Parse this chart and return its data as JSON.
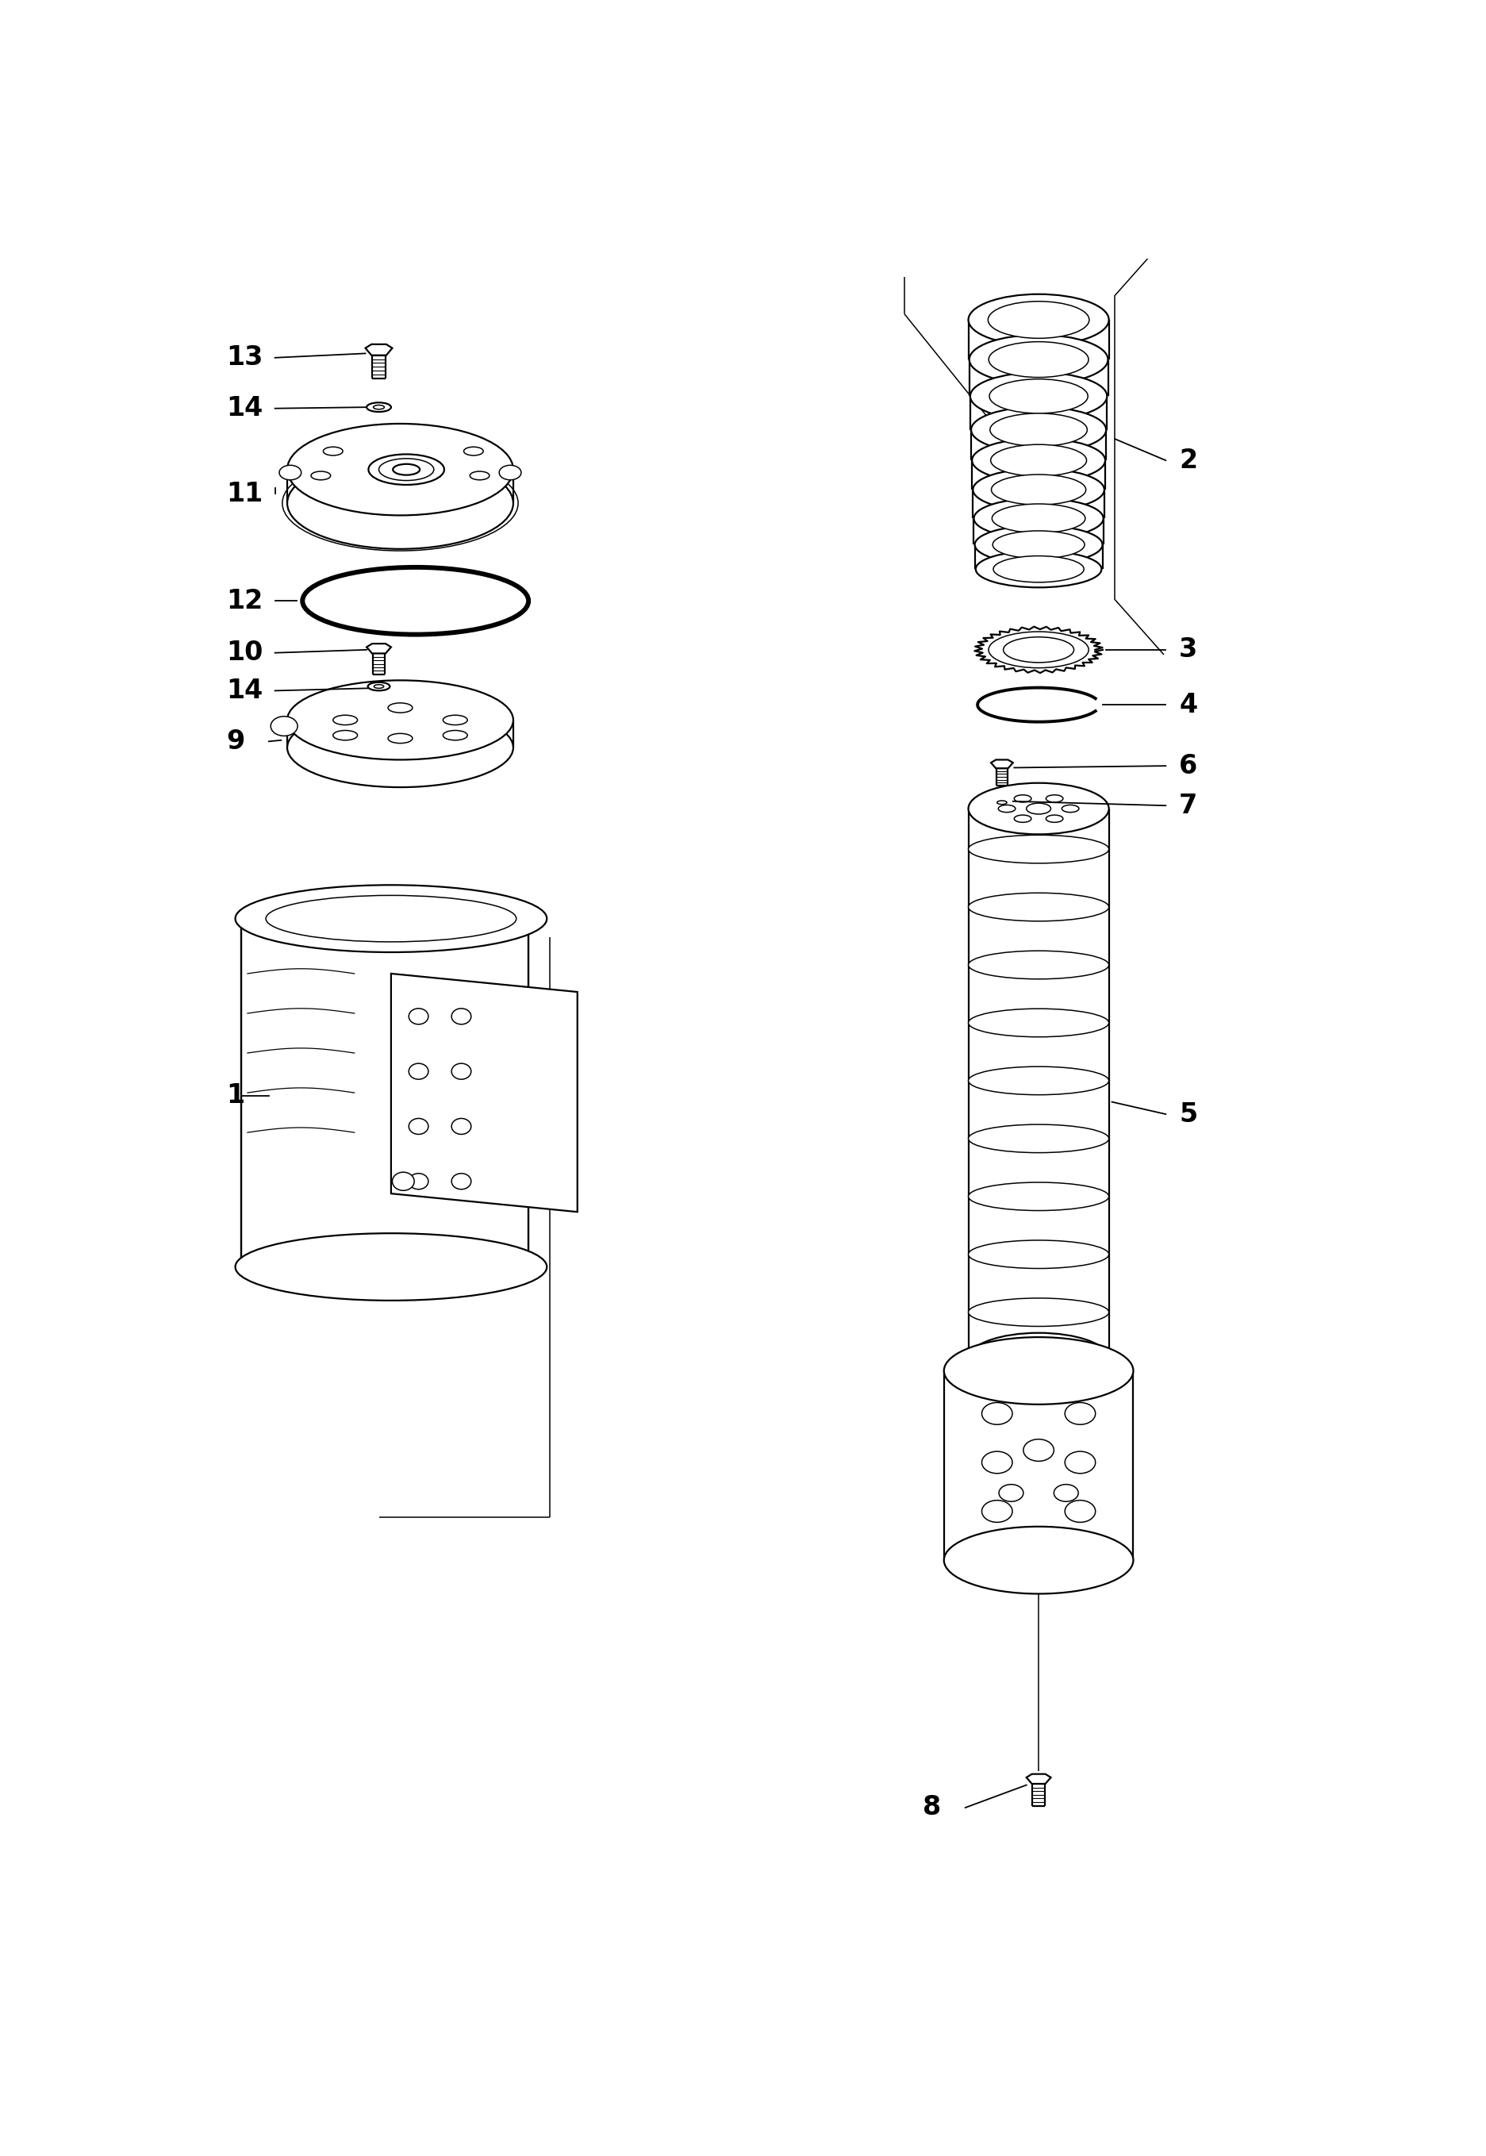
{
  "background_color": "#ffffff",
  "fig_width": 18.73,
  "fig_height": 27.17,
  "lw_main": 1.6,
  "lw_thick": 2.8,
  "lw_thin": 1.1,
  "lw_leader": 1.3,
  "label_fontsize": 20
}
